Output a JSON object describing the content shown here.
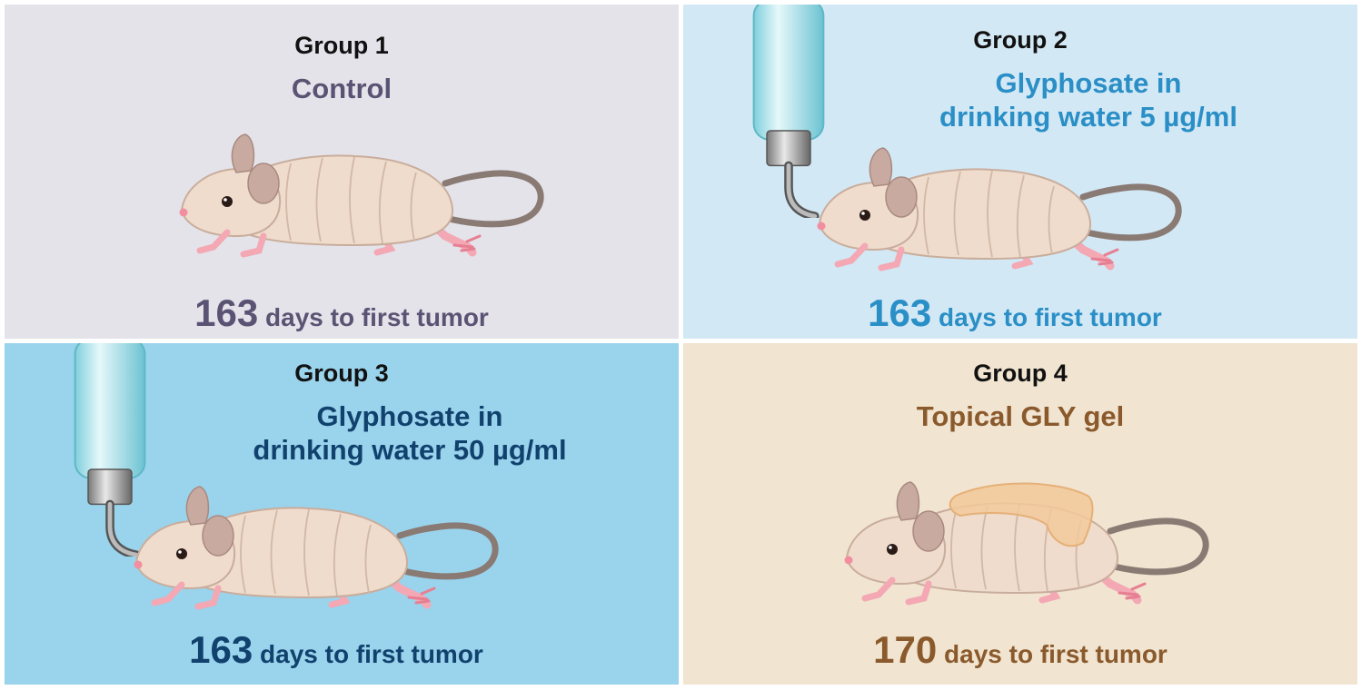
{
  "groups": [
    {
      "title": "Group 1",
      "condition": [
        "Control"
      ],
      "days": "163",
      "days_text": "days to first tumor",
      "accent": "#5b5373",
      "bg": "#e4e3ea"
    },
    {
      "title": "Group 2",
      "condition": [
        "Glyphosate in",
        "drinking water 5 µg/ml"
      ],
      "days": "163",
      "days_text": "days to first tumor",
      "accent": "#2a8fc6",
      "bg": "#d3e8f5"
    },
    {
      "title": "Group 3",
      "condition": [
        "Glyphosate in",
        "drinking water 50 µg/ml"
      ],
      "days": "163",
      "days_text": "days to first tumor",
      "accent": "#11426e",
      "bg": "#9ad3ec"
    },
    {
      "title": "Group 4",
      "condition": [
        "Topical GLY gel"
      ],
      "days": "170",
      "days_text": "days to first tumor",
      "accent": "#8a5a2d",
      "bg": "#f1e4d0"
    }
  ],
  "icons": [
    "mouse-icon",
    "water-bottle-icon",
    "gel-patch-icon"
  ]
}
